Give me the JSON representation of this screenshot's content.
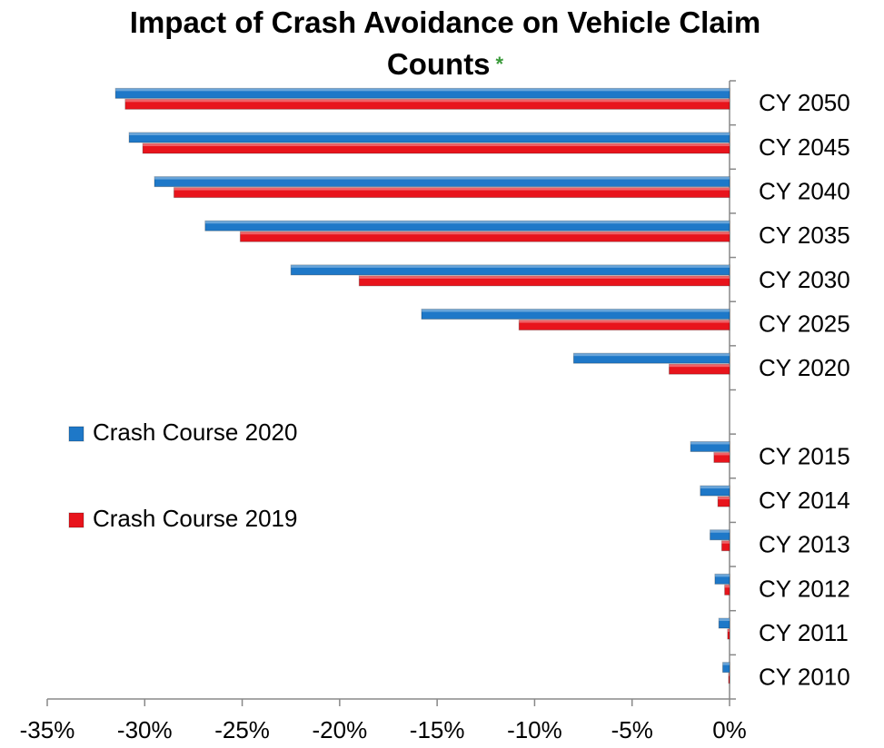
{
  "chart_data": {
    "type": "barh",
    "title": "Impact of Crash Avoidance on Vehicle Claim Counts",
    "title_note": "*",
    "categories": [
      "CY 2050",
      "CY 2045",
      "CY 2040",
      "CY 2035",
      "CY 2030",
      "CY 2025",
      "CY 2020",
      null,
      "CY 2015",
      "CY 2014",
      "CY 2013",
      "CY 2012",
      "CY 2011",
      "CY 2010"
    ],
    "series": [
      {
        "name": "Crash Course 2020",
        "color": "#1e78c8",
        "values": [
          -31.5,
          -30.8,
          -29.5,
          -26.9,
          -22.5,
          -15.8,
          -8.0,
          null,
          -2.0,
          -1.5,
          -1.0,
          -0.75,
          -0.55,
          -0.35
        ]
      },
      {
        "name": "Crash Course 2019",
        "color": "#e8141c",
        "values": [
          -31.0,
          -30.1,
          -28.5,
          -25.1,
          -19.0,
          -10.8,
          -3.1,
          null,
          -0.8,
          -0.6,
          -0.4,
          -0.25,
          -0.1,
          -0.05
        ]
      }
    ],
    "xlim": [
      -35,
      0
    ],
    "xticks": [
      {
        "value": -35,
        "label": "-35%"
      },
      {
        "value": -30,
        "label": "-30%"
      },
      {
        "value": -25,
        "label": "-25%"
      },
      {
        "value": -20,
        "label": "-20%"
      },
      {
        "value": -15,
        "label": "-15%"
      },
      {
        "value": -10,
        "label": "-10%"
      },
      {
        "value": -5,
        "label": "-5%"
      },
      {
        "value": 0,
        "label": "0%"
      }
    ],
    "legend": "left",
    "grid": false
  }
}
